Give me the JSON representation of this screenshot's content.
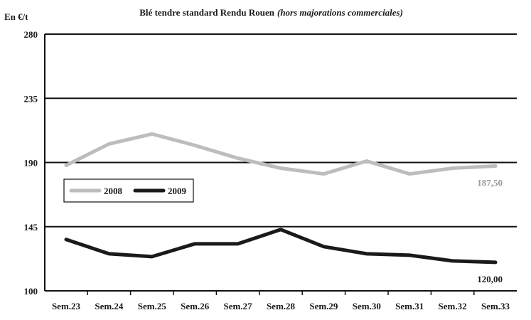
{
  "chart_data": {
    "type": "line",
    "title": "Blé tendre standard Rendu Rouen",
    "subtitle": "(hors majorations commerciales)",
    "ylabel": "En €/t",
    "xlabel": "",
    "categories": [
      "Sem.23",
      "Sem.24",
      "Sem.25",
      "Sem.26",
      "Sem.27",
      "Sem.28",
      "Sem.29",
      "Sem.30",
      "Sem.31",
      "Sem.32",
      "Sem.33"
    ],
    "ylim": [
      100,
      280
    ],
    "yticks": [
      100,
      145,
      190,
      235,
      280
    ],
    "grid": "horizontal",
    "legend_position": "middle-left",
    "series": [
      {
        "name": "2008",
        "color": "#bdbdbd",
        "values": [
          188,
          203,
          210,
          202,
          193,
          186,
          182,
          191,
          182,
          186,
          187.5
        ],
        "end_label": "187,50"
      },
      {
        "name": "2009",
        "color": "#1a1a1a",
        "values": [
          136,
          126,
          124,
          133,
          133,
          143,
          131,
          126,
          125,
          121,
          120
        ],
        "end_label": "120,00"
      }
    ]
  }
}
